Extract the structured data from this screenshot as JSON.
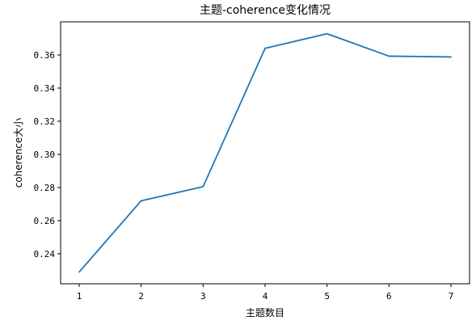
{
  "chart_data": {
    "type": "line",
    "title": "主题-coherence变化情况",
    "xlabel": "主题数目",
    "ylabel": "coherence大小",
    "x": [
      1,
      2,
      3,
      4,
      5,
      6,
      7
    ],
    "series": [
      {
        "values": [
          0.229,
          0.272,
          0.2805,
          0.364,
          0.3728,
          0.3593,
          0.3588
        ],
        "color": "#1f77b4"
      }
    ],
    "xticks": [
      "1",
      "2",
      "3",
      "4",
      "5",
      "6",
      "7"
    ],
    "yticks": [
      "0.24",
      "0.26",
      "0.28",
      "0.30",
      "0.32",
      "0.34",
      "0.36"
    ],
    "xlim": [
      0.7,
      7.3
    ],
    "ylim": [
      0.2219,
      0.38
    ],
    "grid": false,
    "legend": false
  }
}
